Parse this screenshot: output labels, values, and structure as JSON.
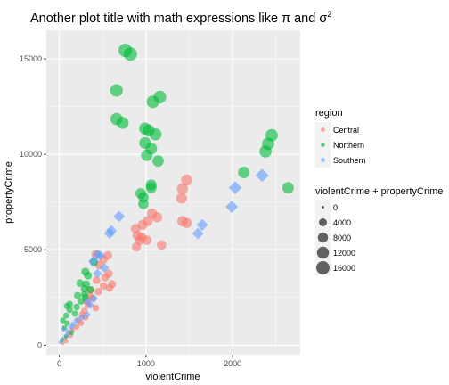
{
  "chart_data": {
    "type": "scatter",
    "title": "Another plot title with math expressions like π and σ",
    "title_superscript": "2",
    "xlabel": "violentCrime",
    "ylabel": "propertyCrime",
    "xlim": [
      -150,
      2780
    ],
    "ylim": [
      -500,
      16500
    ],
    "x_ticks": [
      0,
      1000,
      2000
    ],
    "x_tick_labels": [
      "0",
      "1000",
      "2000"
    ],
    "y_ticks": [
      0,
      5000,
      10000,
      15000
    ],
    "y_tick_labels": [
      "0",
      "5000",
      "10000",
      "15000"
    ],
    "grid": true,
    "panel_background": "#EBEBEB",
    "point_alpha": 0.6,
    "legend_position": "right",
    "legend_color": {
      "title": "region",
      "entries": [
        {
          "label": "Central",
          "color": "#F8766D"
        },
        {
          "label": "Northern",
          "color": "#00BA38"
        },
        {
          "label": "Southern",
          "color": "#619CFF"
        }
      ]
    },
    "legend_size": {
      "title": "violentCrime + propertyCrime",
      "breaks": [
        0,
        4000,
        8000,
        12000,
        16000
      ],
      "labels": [
        "0",
        "4000",
        "8000",
        "12000",
        "16000"
      ]
    },
    "series": [
      {
        "name": "Central",
        "color": "#F8766D",
        "points": [
          [
            1470,
            8650
          ],
          [
            1420,
            8200
          ],
          [
            1410,
            7700
          ],
          [
            1070,
            6900
          ],
          [
            1130,
            6700
          ],
          [
            1020,
            6500
          ],
          [
            1420,
            6500
          ],
          [
            1470,
            6400
          ],
          [
            960,
            6300
          ],
          [
            880,
            6100
          ],
          [
            900,
            5750
          ],
          [
            950,
            5650
          ],
          [
            930,
            5500
          ],
          [
            1010,
            5500
          ],
          [
            1180,
            5250
          ],
          [
            890,
            5150
          ],
          [
            420,
            4750
          ],
          [
            560,
            4700
          ],
          [
            510,
            4500
          ],
          [
            460,
            4200
          ],
          [
            570,
            3750
          ],
          [
            530,
            3550
          ],
          [
            430,
            3400
          ],
          [
            610,
            3200
          ],
          [
            510,
            3100
          ],
          [
            580,
            3000
          ],
          [
            360,
            2900
          ],
          [
            450,
            2800
          ],
          [
            350,
            2600
          ],
          [
            380,
            2450
          ],
          [
            310,
            2300
          ],
          [
            330,
            2100
          ],
          [
            420,
            1950
          ],
          [
            290,
            1800
          ],
          [
            260,
            1600
          ],
          [
            300,
            1450
          ],
          [
            220,
            1300
          ],
          [
            250,
            1150
          ],
          [
            200,
            950
          ],
          [
            150,
            800
          ],
          [
            110,
            650
          ],
          [
            130,
            500
          ],
          [
            60,
            350
          ],
          [
            80,
            200
          ],
          [
            40,
            100
          ]
        ]
      },
      {
        "name": "Northern",
        "color": "#00BA38",
        "points": [
          [
            760,
            15450
          ],
          [
            820,
            15250
          ],
          [
            1160,
            13000
          ],
          [
            1080,
            12750
          ],
          [
            660,
            13350
          ],
          [
            660,
            11850
          ],
          [
            730,
            11650
          ],
          [
            990,
            11350
          ],
          [
            1030,
            11250
          ],
          [
            1110,
            11050
          ],
          [
            990,
            10600
          ],
          [
            1060,
            10300
          ],
          [
            1010,
            9950
          ],
          [
            1140,
            9650
          ],
          [
            2450,
            11000
          ],
          [
            2410,
            10550
          ],
          [
            2380,
            10150
          ],
          [
            2130,
            9050
          ],
          [
            2640,
            8250
          ],
          [
            1060,
            8400
          ],
          [
            1060,
            8250
          ],
          [
            940,
            7950
          ],
          [
            970,
            7750
          ],
          [
            970,
            7400
          ],
          [
            400,
            4350
          ],
          [
            300,
            3850
          ],
          [
            330,
            3650
          ],
          [
            240,
            3250
          ],
          [
            310,
            3200
          ],
          [
            290,
            2950
          ],
          [
            360,
            2900
          ],
          [
            290,
            2650
          ],
          [
            210,
            2600
          ],
          [
            300,
            2500
          ],
          [
            250,
            2300
          ],
          [
            120,
            2150
          ],
          [
            90,
            2050
          ],
          [
            200,
            2000
          ],
          [
            120,
            1850
          ],
          [
            180,
            1650
          ],
          [
            80,
            1550
          ],
          [
            40,
            1300
          ],
          [
            90,
            1150
          ],
          [
            60,
            900
          ],
          [
            140,
            650
          ],
          [
            80,
            450
          ],
          [
            30,
            250
          ]
        ]
      },
      {
        "name": "Southern",
        "color": "#619CFF",
        "points": [
          [
            2340,
            8900
          ],
          [
            2030,
            8250
          ],
          [
            1990,
            7250
          ],
          [
            690,
            6750
          ],
          [
            1650,
            6300
          ],
          [
            1600,
            5850
          ],
          [
            600,
            6000
          ],
          [
            580,
            5850
          ],
          [
            440,
            4750
          ],
          [
            470,
            4700
          ],
          [
            390,
            4400
          ],
          [
            520,
            4050
          ],
          [
            440,
            3750
          ],
          [
            400,
            2450
          ],
          [
            330,
            2300
          ],
          [
            360,
            2100
          ],
          [
            320,
            1600
          ],
          [
            260,
            1450
          ],
          [
            200,
            1300
          ],
          [
            160,
            1100
          ],
          [
            140,
            950
          ],
          [
            50,
            850
          ],
          [
            100,
            700
          ],
          [
            80,
            500
          ],
          [
            30,
            300
          ],
          [
            10,
            150
          ]
        ]
      }
    ]
  }
}
